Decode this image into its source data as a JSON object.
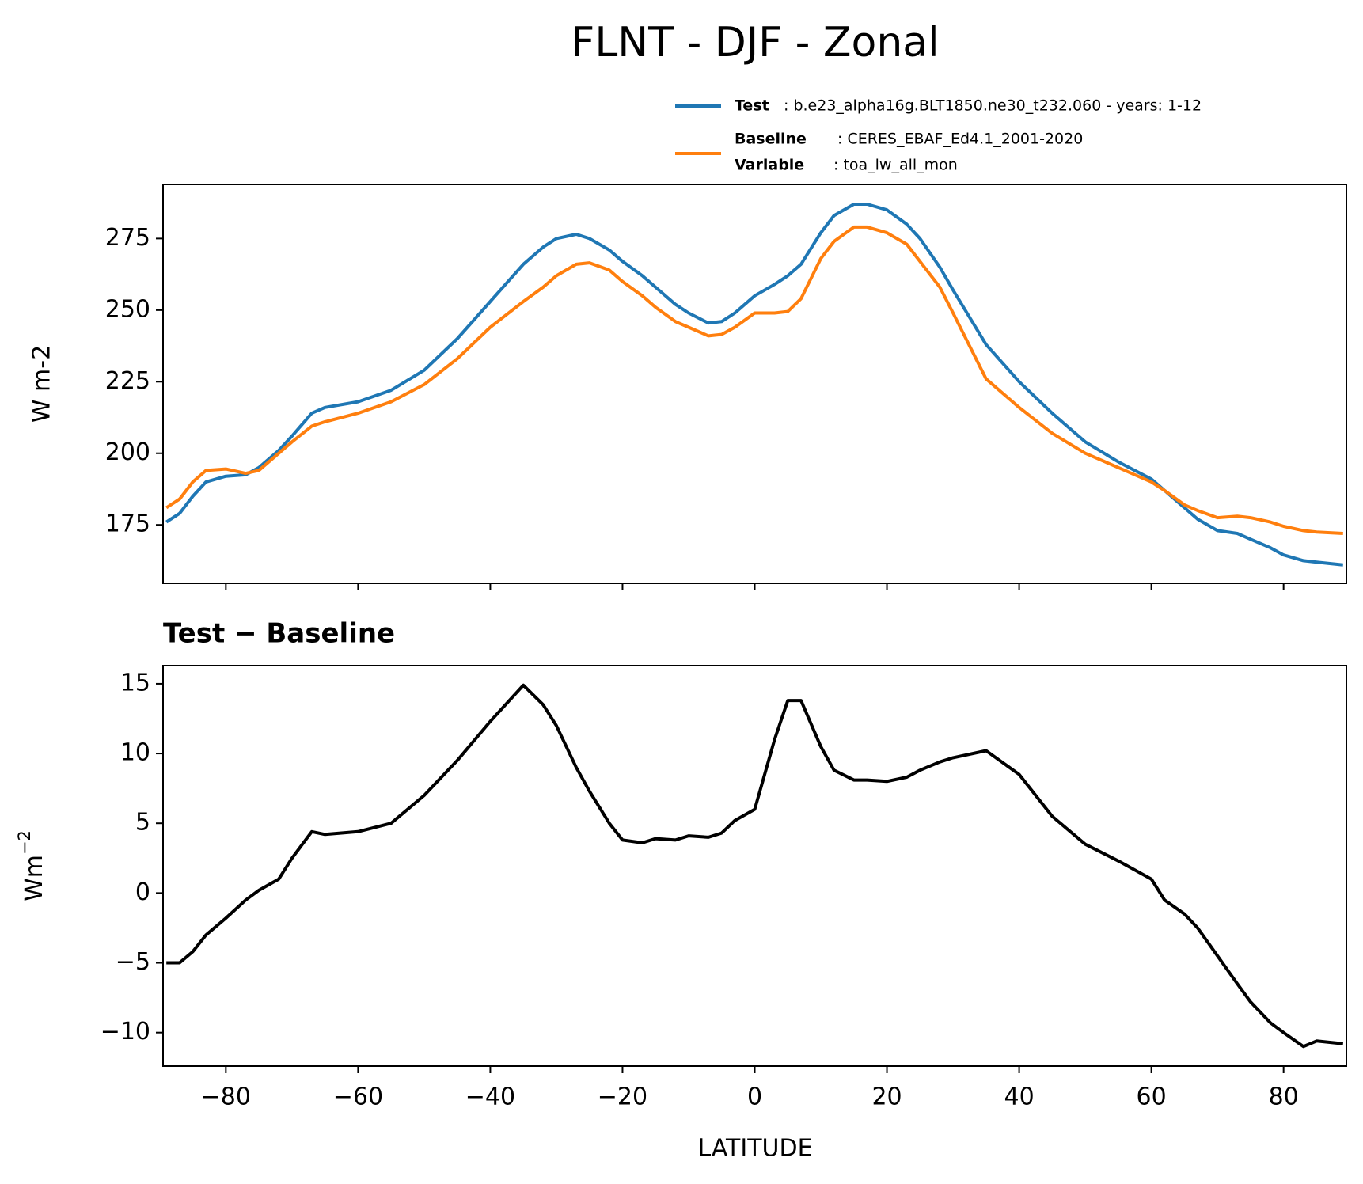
{
  "chart_data": [
    {
      "type": "line",
      "title": "FLNT - DJF - Zonal",
      "ylabel": "W m-2",
      "x": [
        -89,
        -87,
        -85,
        -83,
        -80,
        -77,
        -75,
        -72,
        -70,
        -67,
        -65,
        -60,
        -55,
        -50,
        -45,
        -40,
        -35,
        -32,
        -30,
        -27,
        -25,
        -22,
        -20,
        -17,
        -15,
        -12,
        -10,
        -7,
        -5,
        -3,
        0,
        3,
        5,
        7,
        10,
        12,
        15,
        17,
        20,
        23,
        25,
        28,
        30,
        35,
        40,
        45,
        50,
        55,
        60,
        62,
        65,
        67,
        70,
        73,
        75,
        78,
        80,
        83,
        85,
        89
      ],
      "series": [
        {
          "name": "Test",
          "label": ": b.e23_alpha16g.BLT1850.ne30_t232.060 - years: 1-12",
          "color": "#1f77b4",
          "values": [
            176,
            179,
            185,
            190,
            192,
            192.5,
            195,
            201,
            206,
            214,
            216,
            218,
            222,
            229,
            240,
            253,
            266,
            272,
            275,
            276.5,
            275,
            271,
            267,
            262,
            258,
            252,
            249,
            245.5,
            246,
            249,
            255,
            259,
            262,
            266,
            277,
            283,
            287,
            287,
            285,
            280,
            275,
            265,
            257,
            238,
            225,
            214,
            204,
            197,
            191,
            187,
            181,
            177,
            173,
            172,
            170,
            167,
            164.5,
            162.5,
            162,
            161
          ]
        },
        {
          "name": "Baseline",
          "label": ": CERES_EBAF_Ed4.1_2001-2020",
          "variable_name": "Variable",
          "variable": ": toa_lw_all_mon",
          "color": "#ff7f0e",
          "values": [
            181,
            184,
            190,
            194,
            194.5,
            193,
            194,
            200,
            204,
            209.5,
            211,
            214,
            218,
            224,
            233,
            244,
            253,
            258,
            262,
            266,
            266.5,
            264,
            260,
            255,
            251,
            246,
            244,
            241,
            241.5,
            244,
            249,
            249,
            249.5,
            254,
            268,
            274,
            279,
            279,
            277,
            273,
            267,
            258,
            249,
            226,
            216,
            207,
            200,
            195,
            190,
            187,
            182,
            180,
            177.5,
            178,
            177.5,
            176,
            174.5,
            173,
            172.5,
            172
          ]
        }
      ],
      "xlim": [
        -89.5,
        89.5
      ],
      "xticks": [
        -80,
        -60,
        -40,
        -20,
        0,
        20,
        40,
        60,
        80
      ],
      "ylim": [
        154.6,
        293.9
      ],
      "yticks": [
        175,
        200,
        225,
        250,
        275
      ]
    },
    {
      "type": "line",
      "title": "Test − Baseline",
      "ylabel": "Wm",
      "ylabel_sup": "−2",
      "xlabel": "LATITUDE",
      "x": [
        -89,
        -87,
        -85,
        -83,
        -80,
        -77,
        -75,
        -72,
        -70,
        -67,
        -65,
        -60,
        -55,
        -50,
        -45,
        -40,
        -35,
        -32,
        -30,
        -27,
        -25,
        -22,
        -20,
        -17,
        -15,
        -12,
        -10,
        -7,
        -5,
        -3,
        0,
        3,
        5,
        7,
        10,
        12,
        15,
        17,
        20,
        23,
        25,
        28,
        30,
        35,
        40,
        45,
        50,
        55,
        60,
        62,
        65,
        67,
        70,
        73,
        75,
        78,
        80,
        83,
        85,
        89
      ],
      "color": "#000000",
      "values": [
        -5,
        -5,
        -4.2,
        -3,
        -1.8,
        -0.5,
        0.2,
        1,
        2.5,
        4.4,
        4.2,
        4.4,
        5,
        7,
        9.5,
        12.3,
        14.9,
        13.5,
        12,
        9,
        7.3,
        5,
        3.8,
        3.6,
        3.9,
        3.8,
        4.1,
        4,
        4.3,
        5.2,
        6,
        11,
        13.8,
        13.8,
        10.5,
        8.8,
        8.1,
        8.1,
        8,
        8.3,
        8.8,
        9.4,
        9.7,
        10.2,
        8.5,
        5.5,
        3.5,
        2.3,
        1,
        -0.5,
        -1.5,
        -2.5,
        -4.5,
        -6.5,
        -7.8,
        -9.3,
        -10,
        -11,
        -10.6,
        -10.8
      ],
      "xlim": [
        -89.5,
        89.5
      ],
      "xticks": [
        {
          "value": -80,
          "label": "−80"
        },
        {
          "value": -60,
          "label": "−60"
        },
        {
          "value": -40,
          "label": "−40"
        },
        {
          "value": -20,
          "label": "−20"
        },
        0,
        20,
        40,
        60,
        80
      ],
      "ylim": [
        -12.4,
        16.3
      ],
      "yticks": [
        {
          "value": -10,
          "label": "−10"
        },
        {
          "value": -5,
          "label": "−5"
        },
        0,
        5,
        10,
        15
      ]
    }
  ]
}
